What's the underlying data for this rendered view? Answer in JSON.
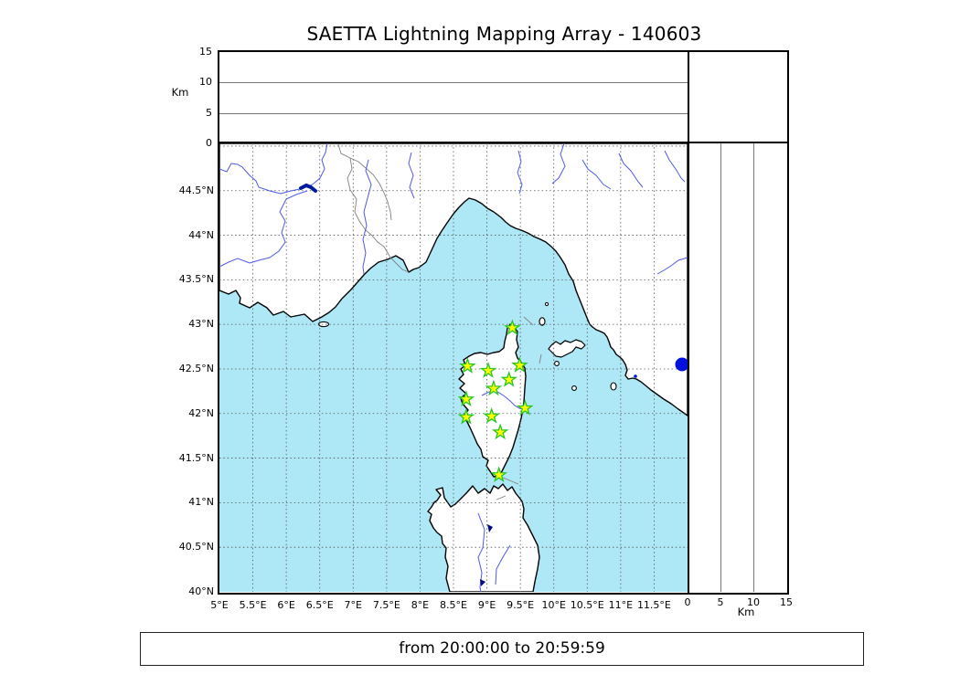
{
  "title": "SAETTA Lightning Mapping Array - 140603",
  "footer": "from 20:00:00 to 20:59:59",
  "axes": {
    "km_label_left": "Km",
    "km_label_right": "Km",
    "altitude_ticks_top_panel": [
      "15",
      "10",
      "5",
      "0"
    ],
    "km_ticks_right_panel": [
      "0",
      "5",
      "10",
      "15"
    ],
    "longitude_ticks": [
      "5°E",
      "5.5°E",
      "6°E",
      "6.5°E",
      "7°E",
      "7.5°E",
      "8°E",
      "8.5°E",
      "9°E",
      "9.5°E",
      "10°E",
      "10.5°E",
      "11°E",
      "11.5°E"
    ],
    "latitude_ticks": [
      "44.5°N",
      "44°N",
      "43.5°N",
      "43°N",
      "42.5°N",
      "42°N",
      "41.5°N",
      "41°N",
      "40.5°N",
      "40°N"
    ],
    "panel_gridlines_km": [
      5,
      10
    ]
  },
  "colors": {
    "sea": "#aee8f6",
    "land": "#ffffff",
    "coast": "#000000",
    "river": "#4d5ae8",
    "lake": "#0010dd",
    "country_border": "#808080",
    "map_grid": "#555555",
    "panel_grid": "#777777",
    "station_fill": "#ffff00",
    "station_edge": "#25c625",
    "frame": "#000000"
  },
  "chart_data": {
    "type": "scatter",
    "title": "SAETTA Lightning Mapping Array - 140603",
    "annotation": "from 20:00:00 to 20:59:59",
    "map_extent": {
      "lon_min_deg_e": 5.0,
      "lon_max_deg_e": 12.0,
      "lat_min_deg_n": 40.0,
      "lat_max_deg_n": 45.03
    },
    "grid_interval_deg": 0.5,
    "altitude_axis_km": {
      "min": 0,
      "max": 15,
      "ticks": [
        0,
        5,
        10,
        15
      ]
    },
    "stations_lonlat": [
      [
        9.38,
        42.96
      ],
      [
        8.71,
        42.53
      ],
      [
        9.02,
        42.48
      ],
      [
        9.49,
        42.54
      ],
      [
        9.33,
        42.38
      ],
      [
        9.1,
        42.28
      ],
      [
        8.69,
        42.16
      ],
      [
        9.57,
        42.06
      ],
      [
        8.69,
        41.96
      ],
      [
        9.07,
        41.97
      ],
      [
        9.2,
        41.79
      ],
      [
        9.18,
        41.31
      ]
    ],
    "lightning_sources": []
  }
}
